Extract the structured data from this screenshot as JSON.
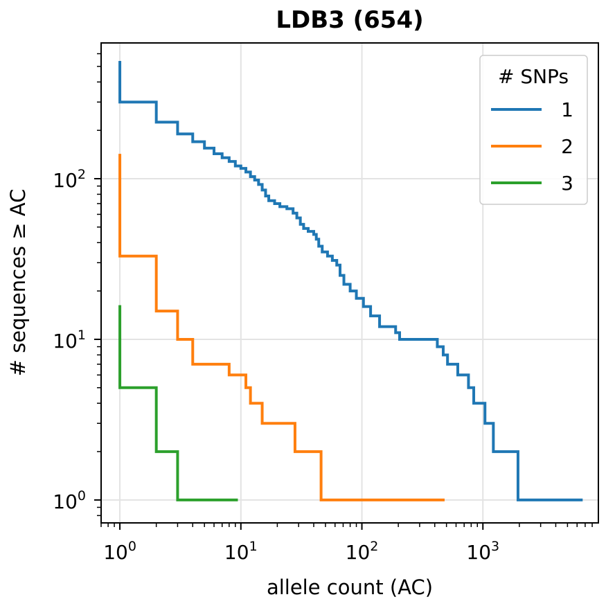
{
  "chart_data": {
    "type": "line",
    "title": "LDB3 (654)",
    "xlabel": "allele count (AC)",
    "ylabel": "# sequences ≥ AC",
    "xscale": "log",
    "yscale": "log",
    "xlim": [
      0.7,
      9000
    ],
    "ylim": [
      0.72,
      700
    ],
    "x_ticks": [
      {
        "value": 1,
        "base": "10",
        "exp": "0"
      },
      {
        "value": 10,
        "base": "10",
        "exp": "1"
      },
      {
        "value": 100,
        "base": "10",
        "exp": "2"
      },
      {
        "value": 1000,
        "base": "10",
        "exp": "3"
      }
    ],
    "y_ticks": [
      {
        "value": 1,
        "base": "10",
        "exp": "0"
      },
      {
        "value": 10,
        "base": "10",
        "exp": "1"
      },
      {
        "value": 100,
        "base": "10",
        "exp": "2"
      }
    ],
    "grid": true,
    "legend": {
      "title": "# SNPs",
      "position": "top-right"
    },
    "series": [
      {
        "name": "1",
        "color": "#1f77b4",
        "points": [
          [
            1,
            530
          ],
          [
            1,
            300
          ],
          [
            2,
            300
          ],
          [
            2,
            225
          ],
          [
            3,
            225
          ],
          [
            3,
            190
          ],
          [
            4,
            190
          ],
          [
            4,
            170
          ],
          [
            5,
            170
          ],
          [
            5,
            155
          ],
          [
            6,
            155
          ],
          [
            6,
            143
          ],
          [
            7,
            143
          ],
          [
            7,
            135
          ],
          [
            8,
            135
          ],
          [
            8,
            128
          ],
          [
            9,
            128
          ],
          [
            9,
            120
          ],
          [
            10,
            120
          ],
          [
            10,
            116
          ],
          [
            11,
            116
          ],
          [
            11,
            110
          ],
          [
            12,
            110
          ],
          [
            12,
            103
          ],
          [
            13,
            103
          ],
          [
            13,
            98
          ],
          [
            14,
            98
          ],
          [
            14,
            92
          ],
          [
            15,
            92
          ],
          [
            15,
            85
          ],
          [
            16,
            85
          ],
          [
            16,
            78
          ],
          [
            17,
            78
          ],
          [
            17,
            73
          ],
          [
            19,
            73
          ],
          [
            19,
            70
          ],
          [
            21,
            70
          ],
          [
            21,
            67
          ],
          [
            24,
            67
          ],
          [
            24,
            65
          ],
          [
            27,
            65
          ],
          [
            27,
            61
          ],
          [
            29,
            61
          ],
          [
            29,
            57
          ],
          [
            31,
            57
          ],
          [
            31,
            52
          ],
          [
            33,
            52
          ],
          [
            33,
            49
          ],
          [
            36,
            49
          ],
          [
            36,
            47
          ],
          [
            40,
            47
          ],
          [
            40,
            45
          ],
          [
            42,
            45
          ],
          [
            42,
            42
          ],
          [
            44,
            42
          ],
          [
            44,
            38
          ],
          [
            47,
            38
          ],
          [
            47,
            35
          ],
          [
            52,
            35
          ],
          [
            52,
            33
          ],
          [
            57,
            33
          ],
          [
            57,
            31
          ],
          [
            62,
            31
          ],
          [
            62,
            29
          ],
          [
            66,
            29
          ],
          [
            66,
            25
          ],
          [
            71,
            25
          ],
          [
            71,
            22
          ],
          [
            80,
            22
          ],
          [
            80,
            20
          ],
          [
            90,
            20
          ],
          [
            90,
            18
          ],
          [
            103,
            18
          ],
          [
            103,
            16
          ],
          [
            118,
            16
          ],
          [
            118,
            14
          ],
          [
            140,
            14
          ],
          [
            140,
            12
          ],
          [
            190,
            12
          ],
          [
            190,
            11
          ],
          [
            205,
            11
          ],
          [
            205,
            10
          ],
          [
            420,
            10
          ],
          [
            420,
            9
          ],
          [
            470,
            9
          ],
          [
            470,
            8
          ],
          [
            510,
            8
          ],
          [
            510,
            7
          ],
          [
            620,
            7
          ],
          [
            620,
            6
          ],
          [
            760,
            6
          ],
          [
            760,
            5
          ],
          [
            840,
            5
          ],
          [
            840,
            4
          ],
          [
            1040,
            4
          ],
          [
            1040,
            3
          ],
          [
            1220,
            3
          ],
          [
            1220,
            2
          ],
          [
            1950,
            2
          ],
          [
            1950,
            1
          ],
          [
            6500,
            1
          ]
        ]
      },
      {
        "name": "2",
        "color": "#ff7f0e",
        "points": [
          [
            1,
            140
          ],
          [
            1,
            33
          ],
          [
            2,
            33
          ],
          [
            2,
            15
          ],
          [
            3,
            15
          ],
          [
            3,
            10
          ],
          [
            4,
            10
          ],
          [
            4,
            7
          ],
          [
            8,
            7
          ],
          [
            8,
            6
          ],
          [
            11,
            6
          ],
          [
            11,
            5
          ],
          [
            12,
            5
          ],
          [
            12,
            4
          ],
          [
            15,
            4
          ],
          [
            15,
            3
          ],
          [
            28,
            3
          ],
          [
            28,
            2
          ],
          [
            46,
            2
          ],
          [
            46,
            1
          ],
          [
            470,
            1
          ]
        ]
      },
      {
        "name": "3",
        "color": "#2ca02c",
        "points": [
          [
            1,
            16
          ],
          [
            1,
            5
          ],
          [
            2,
            5
          ],
          [
            2,
            2
          ],
          [
            3,
            2
          ],
          [
            3,
            1
          ],
          [
            9.2,
            1
          ]
        ]
      }
    ]
  }
}
